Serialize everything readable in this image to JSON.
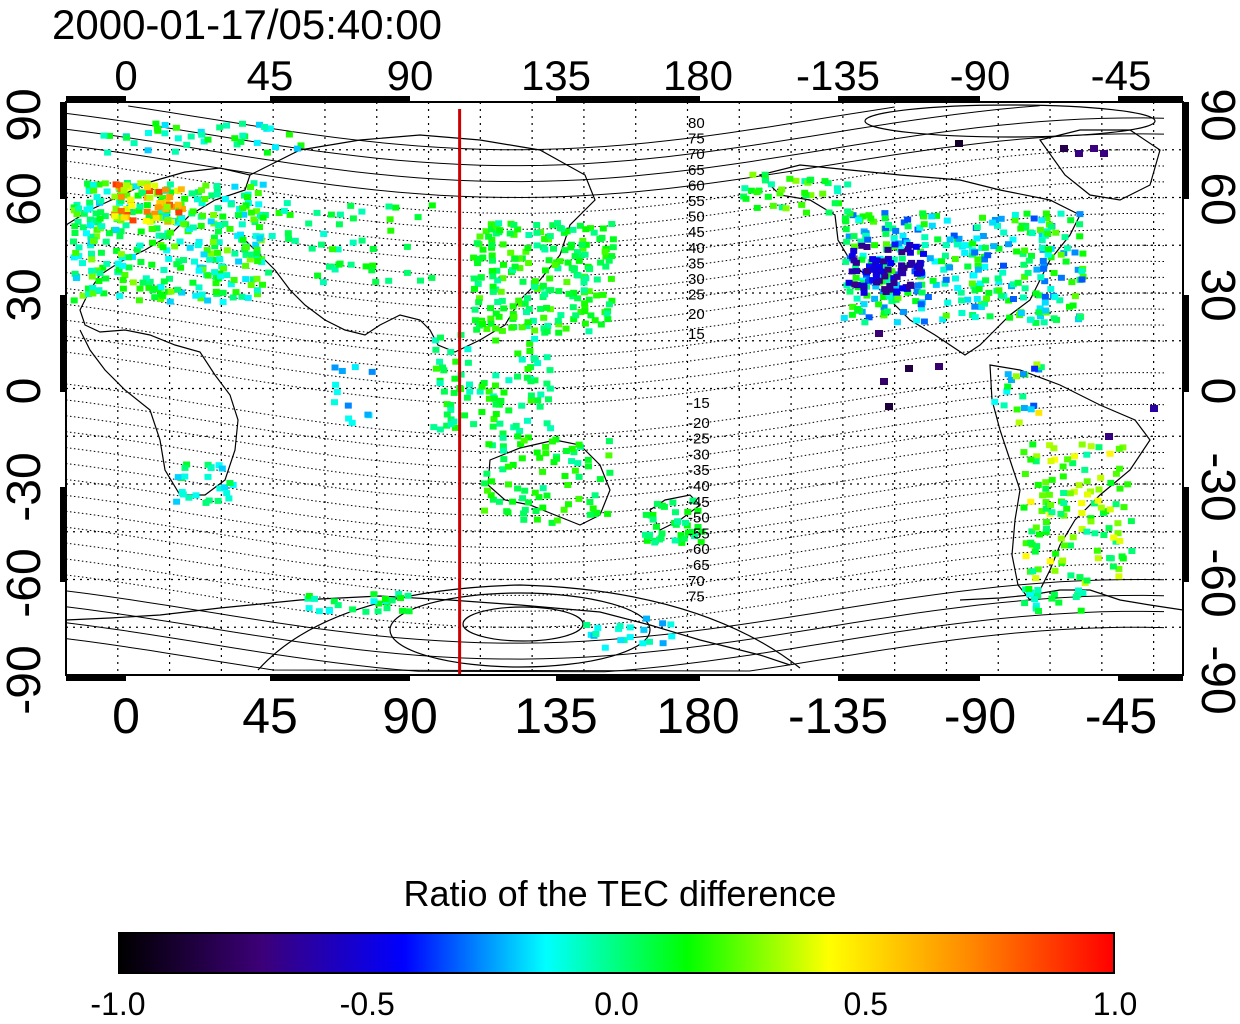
{
  "title": "2000-01-17/05:40:00",
  "map": {
    "lon_ticks": [
      "0",
      "45",
      "90",
      "135",
      "180",
      "-135",
      "-90",
      "-45"
    ],
    "lat_ticks": [
      "90",
      "60",
      "30",
      "0",
      "-30",
      "-60",
      "-90"
    ],
    "terminator_longitude_deg": 94,
    "terminator_color": "#cc0000",
    "contour_labels_north": [
      "80",
      "75",
      "70",
      "65",
      "60",
      "55",
      "50",
      "45",
      "40",
      "35",
      "30",
      "25",
      "20",
      "15"
    ],
    "contour_labels_south": [
      "-15",
      "-20",
      "-25",
      "-30",
      "-35",
      "-40",
      "-45",
      "-50",
      "-55",
      "-60",
      "-65",
      "70",
      "75"
    ]
  },
  "colorbar": {
    "title": "Ratio of the TEC difference",
    "ticks": [
      "-1.0",
      "-0.5",
      "0.0",
      "0.5",
      "1.0"
    ],
    "range": [
      -1.0,
      1.0
    ],
    "colors": [
      "#000000",
      "#3c0078",
      "#0000ff",
      "#00ffff",
      "#00ff00",
      "#ffff00",
      "#ff8800",
      "#ff0000"
    ]
  }
}
